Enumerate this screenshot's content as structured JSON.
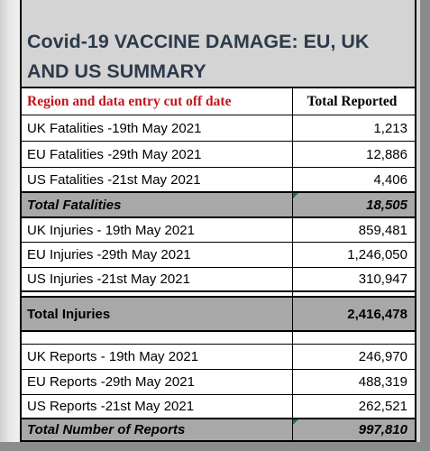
{
  "title": {
    "line1": "Covid-19 VACCINE DAMAGE: EU, UK",
    "line2": "AND US SUMMARY"
  },
  "table": {
    "header": {
      "label": "Region and data entry cut off date",
      "value": "Total Reported"
    },
    "rows": [
      {
        "label": "UK Fatalities -19th May 2021",
        "value": "1,213"
      },
      {
        "label": "EU Fatalities -29th May 2021",
        "value": "12,886"
      },
      {
        "label": "US Fatalities -21st May 2021",
        "value": "4,406"
      },
      {
        "label": "Total Fatalities",
        "value": "18,505"
      },
      {
        "label": "UK Injuries - 19th May 2021",
        "value": "859,481"
      },
      {
        "label": "EU Injuries -29th May 2021",
        "value": "1,246,050"
      },
      {
        "label": "US Injuries -21st May 2021",
        "value": "310,947"
      },
      {
        "label": "Total Injuries",
        "value": "2,416,478"
      },
      {
        "label": "UK Reports - 19th May 2021",
        "value": "246,970"
      },
      {
        "label": "EU Reports -29th May 2021",
        "value": "488,319"
      },
      {
        "label": "US Reports -21st May 2021",
        "value": "262,521"
      },
      {
        "label": "Total Number of Reports",
        "value": "997,810"
      }
    ]
  },
  "colors": {
    "header_text": "#c0161f",
    "title_text": "#2d3a4a",
    "total_row_bg": "#a8a8a8",
    "title_bg": "#d4d4d4"
  }
}
